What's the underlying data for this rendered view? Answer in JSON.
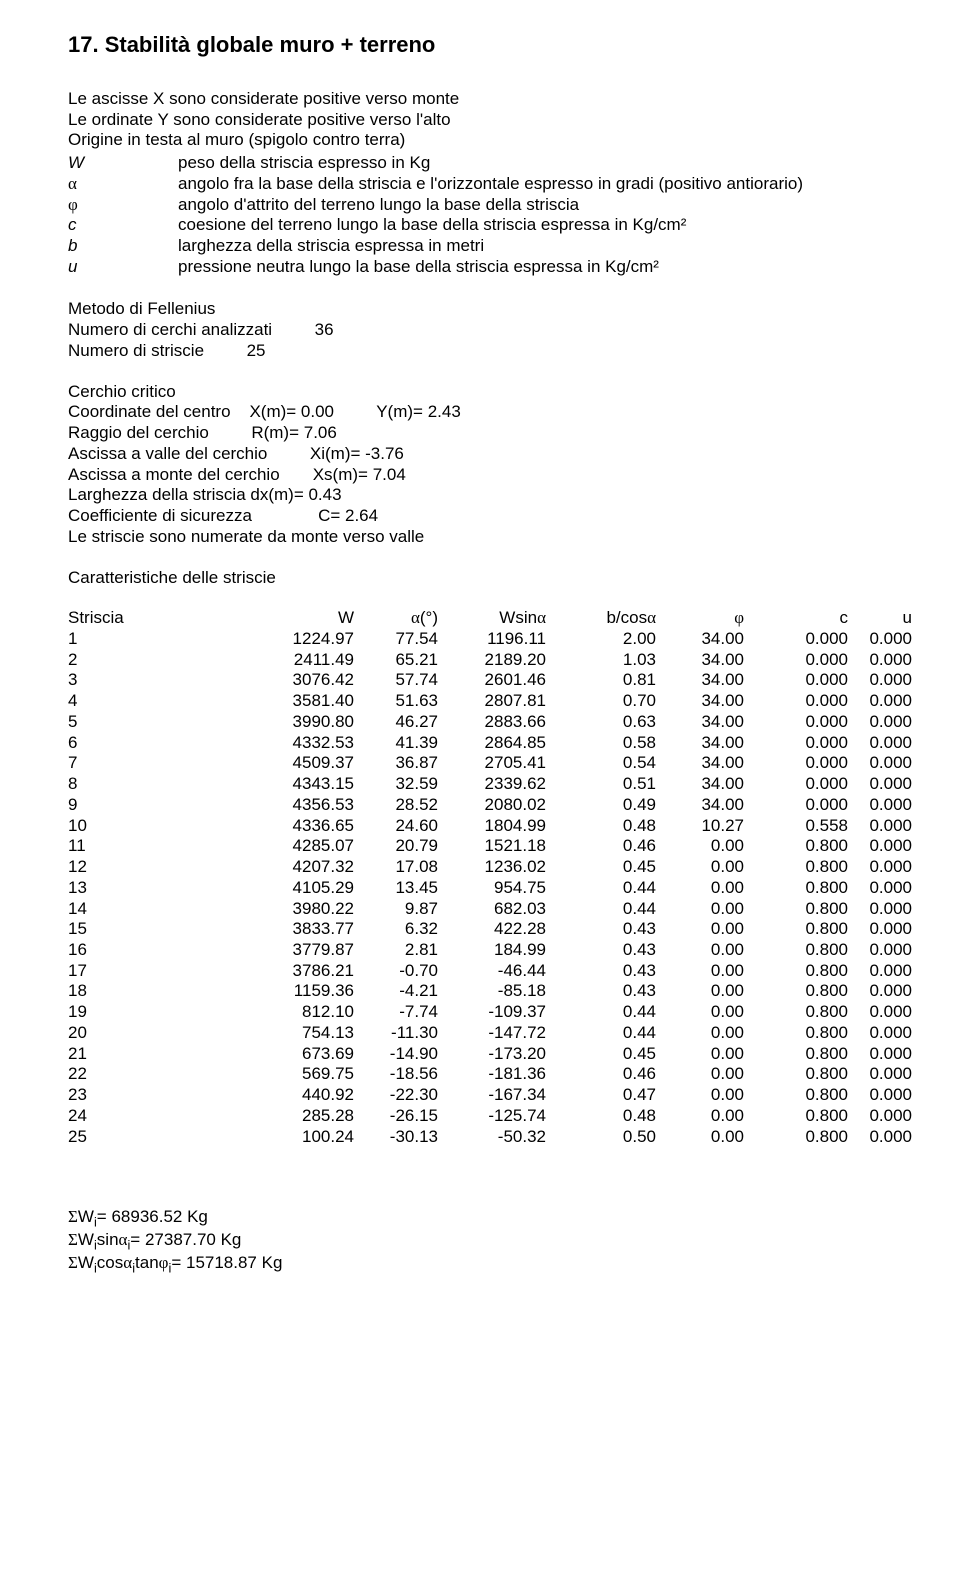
{
  "title": "17. Stabilità globale muro + terreno",
  "intro": [
    "Le ascisse X sono considerate positive verso monte",
    "Le ordinate Y sono considerate positive verso l'alto",
    "Origine in testa al muro (spigolo contro terra)"
  ],
  "defs": [
    {
      "sym": "W",
      "greek": false,
      "txt": "peso della striscia espresso in Kg"
    },
    {
      "sym": "α",
      "greek": true,
      "txt": "angolo fra la base della striscia e l'orizzontale espresso in gradi (positivo antiorario)"
    },
    {
      "sym": "φ",
      "greek": true,
      "txt": "angolo d'attrito del terreno lungo la base della striscia"
    },
    {
      "sym": "c",
      "greek": false,
      "txt": "coesione del terreno lungo la base della striscia espressa in Kg/cm²"
    },
    {
      "sym": "b",
      "greek": false,
      "txt": "larghezza della striscia espressa in metri"
    },
    {
      "sym": "u",
      "greek": false,
      "txt": "pressione neutra lungo la base della striscia espressa in Kg/cm²"
    }
  ],
  "method": {
    "name": "Metodo di Fellenius",
    "circles_label": "Numero di cerchi analizzati",
    "circles": "36",
    "strips_label": "Numero di striscie",
    "strips": "25"
  },
  "circle": {
    "title": "Cerchio critico",
    "center_label": "Coordinate del centro",
    "xm": "X(m)= 0.00",
    "ym": "Y(m)= 2.43",
    "radius_label": "Raggio del cerchio",
    "rm": "R(m)= 7.06",
    "valle_label": "Ascissa a valle del cerchio",
    "xi": "Xi(m)= -3.76",
    "monte_label": "Ascissa a monte del cerchio",
    "xs": "Xs(m)= 7.04",
    "width_label": "Larghezza della striscia",
    "dx": "dx(m)= 0.43",
    "coef_label": "Coefficiente di sicurezza",
    "coef": "C= 2.64",
    "numbered": "Le striscie sono numerate da monte verso valle"
  },
  "table": {
    "title": "Caratteristiche delle striscie",
    "headers": [
      "Striscia",
      "W",
      "α(°)",
      "Wsinα",
      "b/cosα",
      "φ",
      "c",
      "u"
    ],
    "rows": [
      [
        "1",
        "1224.97",
        "77.54",
        "1196.11",
        "2.00",
        "34.00",
        "0.000",
        "0.000"
      ],
      [
        "2",
        "2411.49",
        "65.21",
        "2189.20",
        "1.03",
        "34.00",
        "0.000",
        "0.000"
      ],
      [
        "3",
        "3076.42",
        "57.74",
        "2601.46",
        "0.81",
        "34.00",
        "0.000",
        "0.000"
      ],
      [
        "4",
        "3581.40",
        "51.63",
        "2807.81",
        "0.70",
        "34.00",
        "0.000",
        "0.000"
      ],
      [
        "5",
        "3990.80",
        "46.27",
        "2883.66",
        "0.63",
        "34.00",
        "0.000",
        "0.000"
      ],
      [
        "6",
        "4332.53",
        "41.39",
        "2864.85",
        "0.58",
        "34.00",
        "0.000",
        "0.000"
      ],
      [
        "7",
        "4509.37",
        "36.87",
        "2705.41",
        "0.54",
        "34.00",
        "0.000",
        "0.000"
      ],
      [
        "8",
        "4343.15",
        "32.59",
        "2339.62",
        "0.51",
        "34.00",
        "0.000",
        "0.000"
      ],
      [
        "9",
        "4356.53",
        "28.52",
        "2080.02",
        "0.49",
        "34.00",
        "0.000",
        "0.000"
      ],
      [
        "10",
        "4336.65",
        "24.60",
        "1804.99",
        "0.48",
        "10.27",
        "0.558",
        "0.000"
      ],
      [
        "11",
        "4285.07",
        "20.79",
        "1521.18",
        "0.46",
        "0.00",
        "0.800",
        "0.000"
      ],
      [
        "12",
        "4207.32",
        "17.08",
        "1236.02",
        "0.45",
        "0.00",
        "0.800",
        "0.000"
      ],
      [
        "13",
        "4105.29",
        "13.45",
        "954.75",
        "0.44",
        "0.00",
        "0.800",
        "0.000"
      ],
      [
        "14",
        "3980.22",
        "9.87",
        "682.03",
        "0.44",
        "0.00",
        "0.800",
        "0.000"
      ],
      [
        "15",
        "3833.77",
        "6.32",
        "422.28",
        "0.43",
        "0.00",
        "0.800",
        "0.000"
      ],
      [
        "16",
        "3779.87",
        "2.81",
        "184.99",
        "0.43",
        "0.00",
        "0.800",
        "0.000"
      ],
      [
        "17",
        "3786.21",
        "-0.70",
        "-46.44",
        "0.43",
        "0.00",
        "0.800",
        "0.000"
      ],
      [
        "18",
        "1159.36",
        "-4.21",
        "-85.18",
        "0.43",
        "0.00",
        "0.800",
        "0.000"
      ],
      [
        "19",
        "812.10",
        "-7.74",
        "-109.37",
        "0.44",
        "0.00",
        "0.800",
        "0.000"
      ],
      [
        "20",
        "754.13",
        "-11.30",
        "-147.72",
        "0.44",
        "0.00",
        "0.800",
        "0.000"
      ],
      [
        "21",
        "673.69",
        "-14.90",
        "-173.20",
        "0.45",
        "0.00",
        "0.800",
        "0.000"
      ],
      [
        "22",
        "569.75",
        "-18.56",
        "-181.36",
        "0.46",
        "0.00",
        "0.800",
        "0.000"
      ],
      [
        "23",
        "440.92",
        "-22.30",
        "-167.34",
        "0.47",
        "0.00",
        "0.800",
        "0.000"
      ],
      [
        "24",
        "285.28",
        "-26.15",
        "-125.74",
        "0.48",
        "0.00",
        "0.800",
        "0.000"
      ],
      [
        "25",
        "100.24",
        "-30.13",
        "-50.32",
        "0.50",
        "0.00",
        "0.800",
        "0.000"
      ]
    ]
  },
  "sums": {
    "w": "68936.52 Kg",
    "wsina": "27387.70 Kg",
    "wcosatanphi": "15718.87 Kg"
  }
}
